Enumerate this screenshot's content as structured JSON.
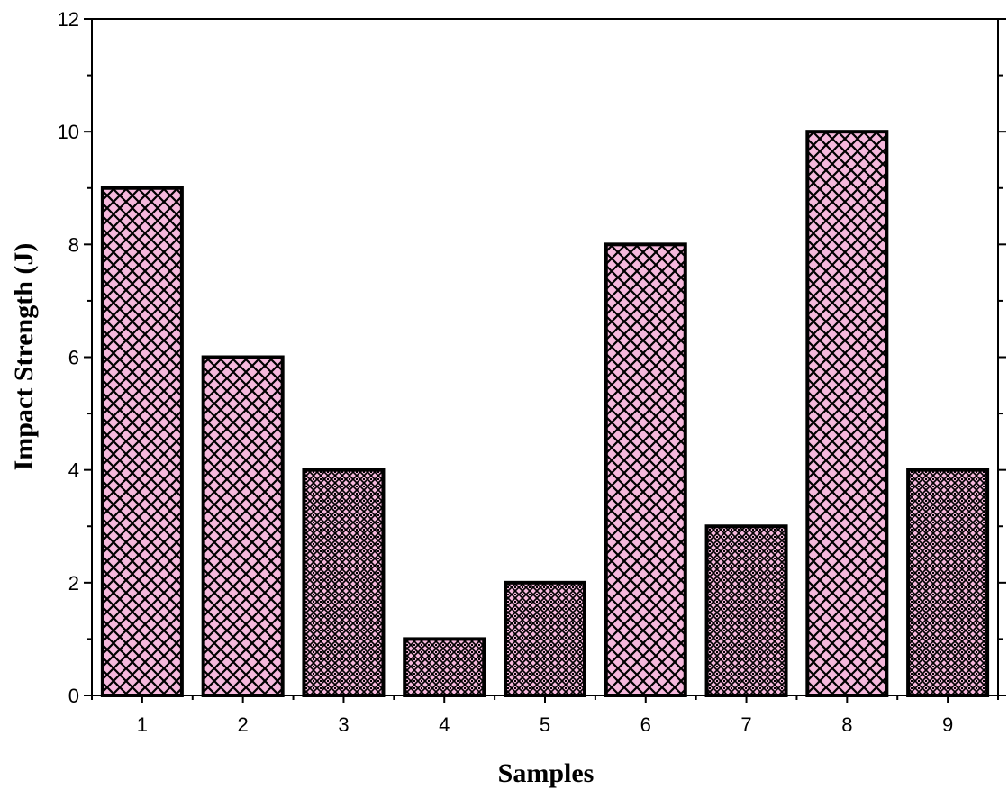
{
  "chart_data": {
    "type": "bar",
    "title": "",
    "xlabel": "Samples",
    "ylabel": "Impact Strength (J)",
    "categories": [
      "1",
      "2",
      "3",
      "4",
      "5",
      "6",
      "7",
      "8",
      "9"
    ],
    "values": [
      9,
      6,
      4,
      1,
      2,
      8,
      3,
      10,
      4
    ],
    "patterns": [
      "crosshatch",
      "crosshatch",
      "fine-check",
      "fine-check",
      "fine-check",
      "crosshatch",
      "fine-check",
      "crosshatch",
      "fine-check"
    ],
    "ylim": [
      0,
      12
    ],
    "yticks": [
      "0",
      "2",
      "4",
      "6",
      "8",
      "10",
      "12"
    ],
    "y_minor_step": 1,
    "grid": false,
    "legend": "none",
    "colors": {
      "bar_fill": "#f5b8dc",
      "bar_edge": "#000000",
      "hatch": "#000000",
      "axis": "#000000",
      "background": "#ffffff"
    }
  }
}
